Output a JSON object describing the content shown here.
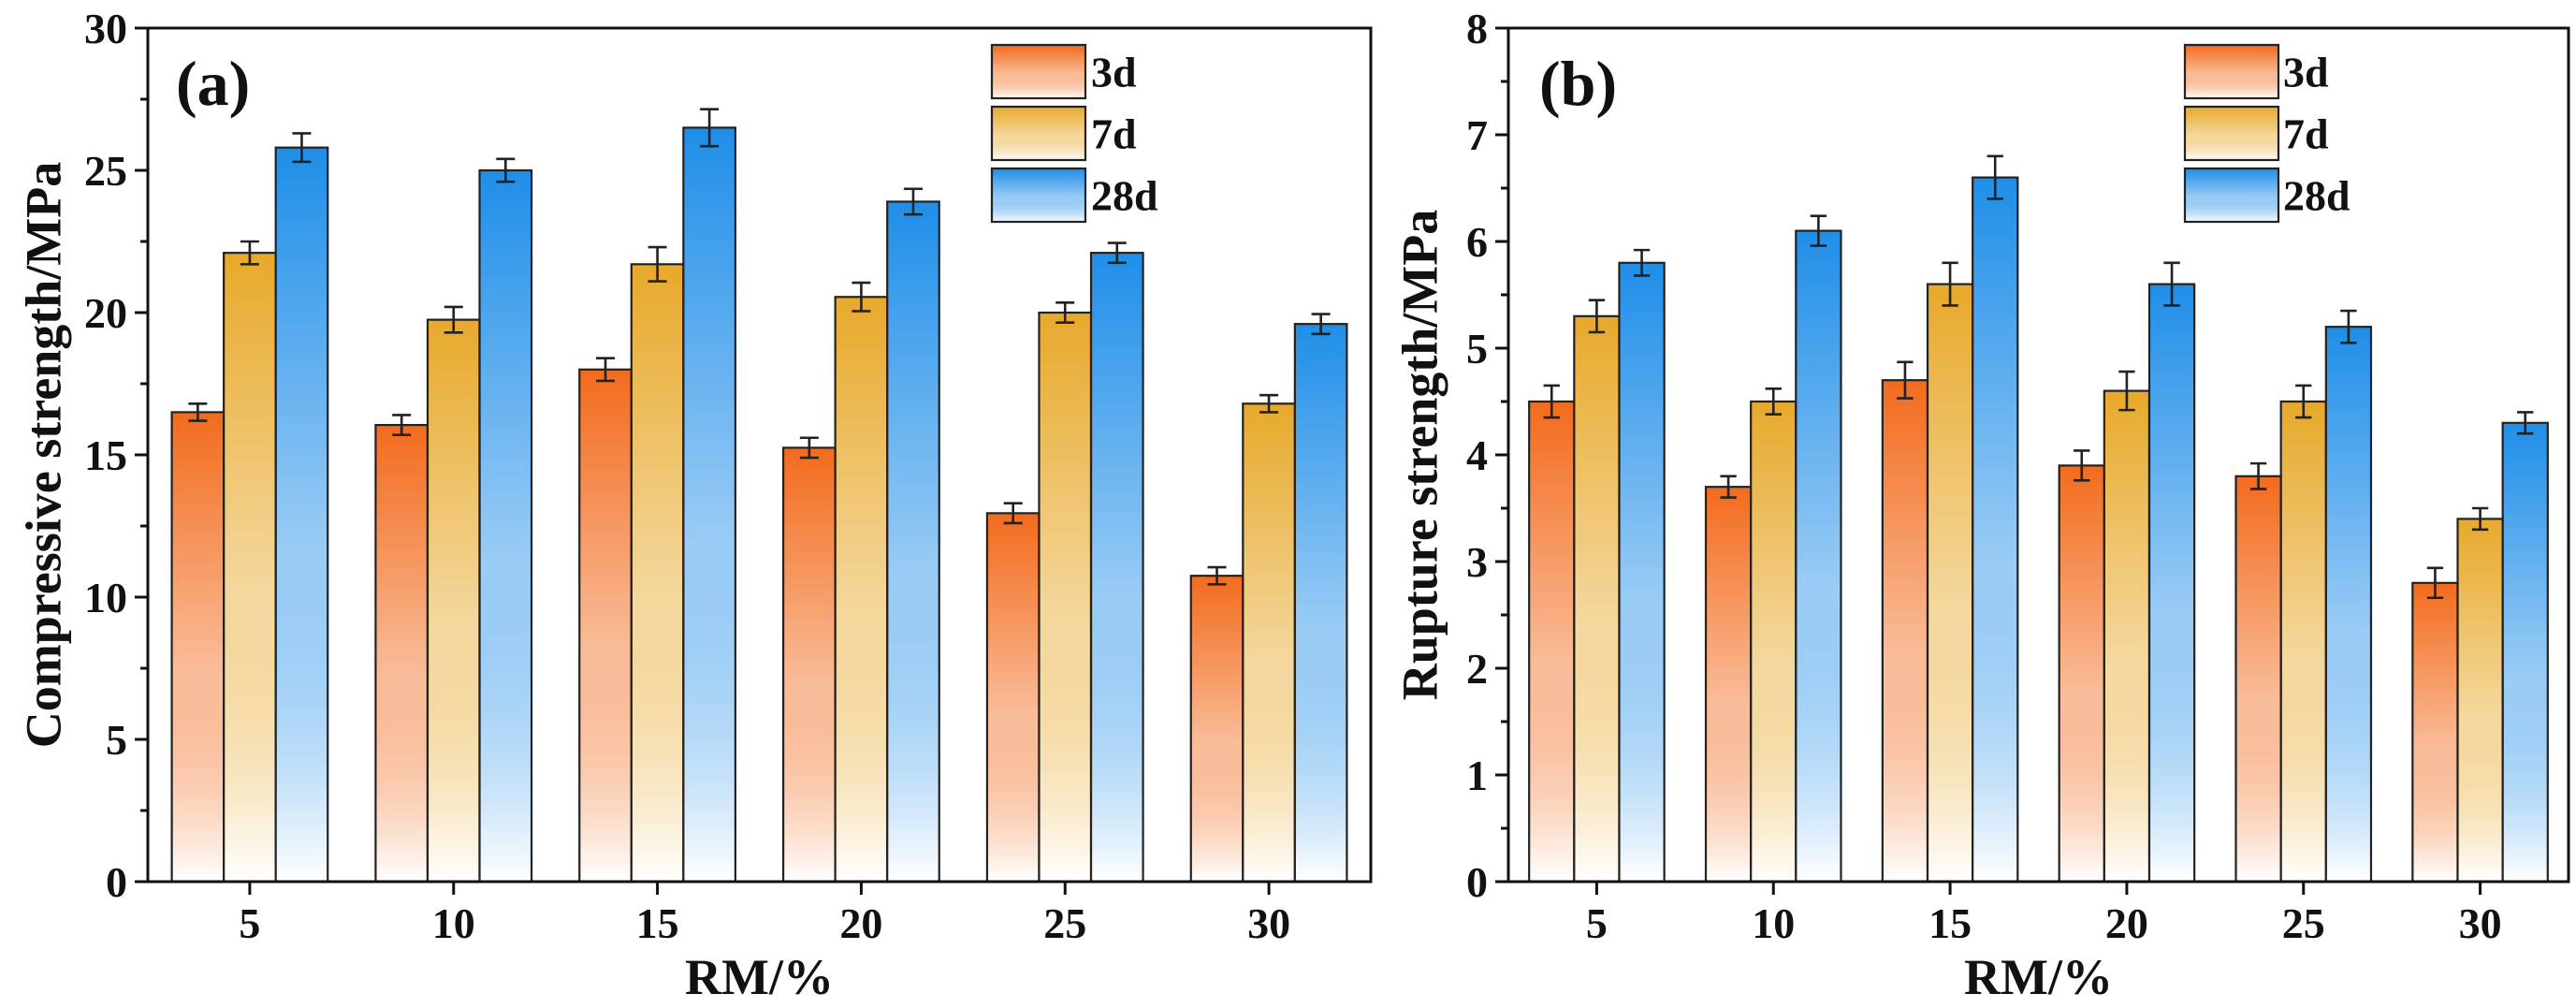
{
  "chart_data": [
    {
      "panel_label": "(a)",
      "type": "bar",
      "xlabel": "RM/%",
      "ylabel": "Compressive strength/MPa",
      "ylim": [
        0,
        30
      ],
      "yticks": [
        0,
        5,
        10,
        15,
        20,
        25,
        30
      ],
      "categories": [
        "5",
        "10",
        "15",
        "20",
        "25",
        "30"
      ],
      "legend_position": "top-right",
      "series": [
        {
          "name": "3d",
          "values": [
            16.5,
            16.05,
            18.0,
            15.25,
            12.95,
            10.75
          ],
          "errors": [
            0.3,
            0.35,
            0.4,
            0.35,
            0.35,
            0.3
          ],
          "color": "#f26b1d"
        },
        {
          "name": "7d",
          "values": [
            22.1,
            19.75,
            21.7,
            20.55,
            20.0,
            16.8
          ],
          "errors": [
            0.4,
            0.45,
            0.6,
            0.5,
            0.35,
            0.3
          ],
          "color": "#e7a92b"
        },
        {
          "name": "28d",
          "values": [
            25.8,
            25.0,
            26.5,
            23.9,
            22.1,
            19.6
          ],
          "errors": [
            0.5,
            0.4,
            0.65,
            0.45,
            0.35,
            0.35
          ],
          "color": "#1f8ee8"
        }
      ]
    },
    {
      "panel_label": "(b)",
      "type": "bar",
      "xlabel": "RM/%",
      "ylabel": "Rupture strength/MPa",
      "ylim": [
        0,
        8
      ],
      "yticks": [
        0,
        1,
        2,
        3,
        4,
        5,
        6,
        7,
        8
      ],
      "categories": [
        "5",
        "10",
        "15",
        "20",
        "25",
        "30"
      ],
      "legend_position": "top-right",
      "series": [
        {
          "name": "3d",
          "values": [
            4.5,
            3.7,
            4.7,
            3.9,
            3.8,
            2.8
          ],
          "errors": [
            0.15,
            0.1,
            0.17,
            0.14,
            0.12,
            0.14
          ],
          "color": "#f26b1d"
        },
        {
          "name": "7d",
          "values": [
            5.3,
            4.5,
            5.6,
            4.6,
            4.5,
            3.4
          ],
          "errors": [
            0.15,
            0.12,
            0.2,
            0.18,
            0.15,
            0.1
          ],
          "color": "#e7a92b"
        },
        {
          "name": "28d",
          "values": [
            5.8,
            6.1,
            6.6,
            5.6,
            5.2,
            4.3
          ],
          "errors": [
            0.12,
            0.14,
            0.2,
            0.2,
            0.15,
            0.1
          ],
          "color": "#1f8ee8"
        }
      ]
    }
  ]
}
